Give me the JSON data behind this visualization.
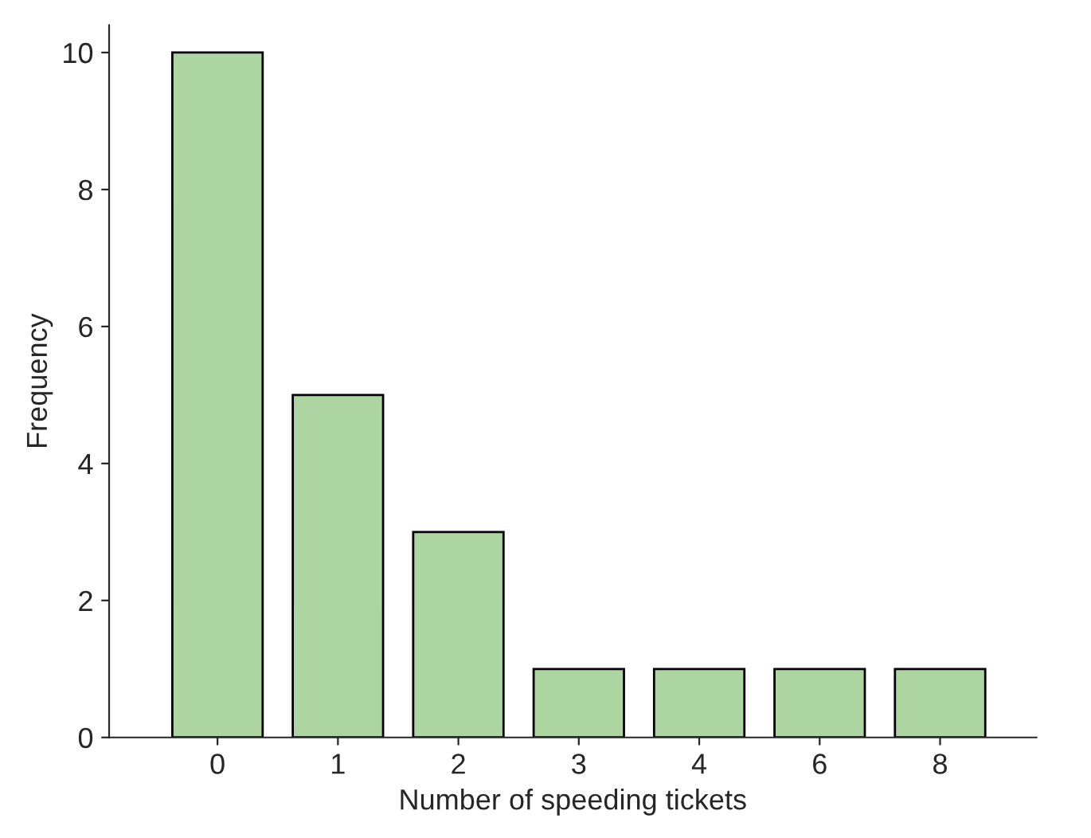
{
  "chart_data": {
    "type": "bar",
    "xlabel": "Number of speeding tickets",
    "ylabel": "Frequency",
    "categories": [
      "0",
      "1",
      "2",
      "3",
      "4",
      "6",
      "8"
    ],
    "values": [
      10,
      5,
      3,
      1,
      1,
      1,
      1
    ],
    "color": "#acd5a2",
    "ylim": [
      0,
      10.4
    ],
    "yticks": [
      0,
      2,
      4,
      6,
      8,
      10
    ],
    "grid": false,
    "legend": false
  }
}
